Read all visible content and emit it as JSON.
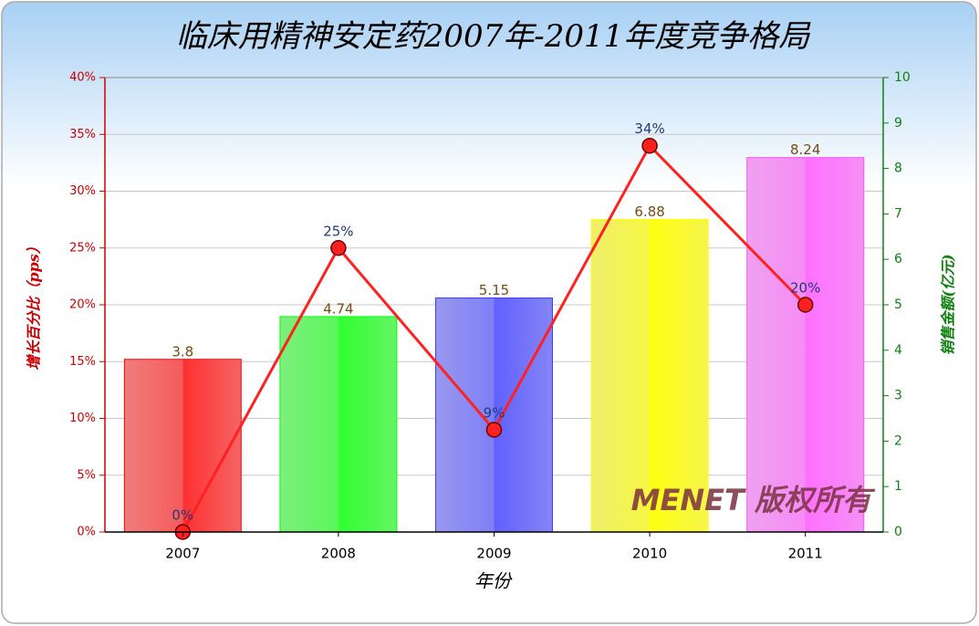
{
  "chart_data": {
    "type": "bar",
    "title": "临床用精神安定药2007年-2011年度竞争格局",
    "xlabel": "年份",
    "ylabel": "增长百分比（pps）",
    "y2label": "销售金额(亿元)",
    "annotation": "MENET 版权所有",
    "categories": [
      "2007",
      "2008",
      "2009",
      "2010",
      "2011"
    ],
    "ylim": [
      0,
      40
    ],
    "yticks": [
      {
        "value": 0,
        "label": "0%"
      },
      {
        "value": 5,
        "label": "5%"
      },
      {
        "value": 10,
        "label": "10%"
      },
      {
        "value": 15,
        "label": "15%"
      },
      {
        "value": 20,
        "label": "20%"
      },
      {
        "value": 25,
        "label": "25%"
      },
      {
        "value": 30,
        "label": "30%"
      },
      {
        "value": 35,
        "label": "35%"
      },
      {
        "value": 40,
        "label": "40%"
      }
    ],
    "y2lim": [
      0,
      10
    ],
    "y2ticks": [
      0,
      1,
      2,
      3,
      4,
      5,
      6,
      7,
      8,
      9,
      10
    ],
    "grid": true,
    "series": [
      {
        "type": "bar",
        "axis": "y2",
        "colors": [
          "#ff3030",
          "#30ff30",
          "#6060ff",
          "#ffff10",
          "#ff70ff"
        ],
        "values": [
          3.8,
          4.74,
          5.15,
          6.88,
          8.24
        ]
      },
      {
        "type": "line",
        "axis": "y",
        "color": "#ff2020",
        "values": [
          0,
          25,
          9,
          34,
          20
        ],
        "value_labels": [
          "0%",
          "25%",
          "9%",
          "34%",
          "20%"
        ]
      }
    ]
  }
}
